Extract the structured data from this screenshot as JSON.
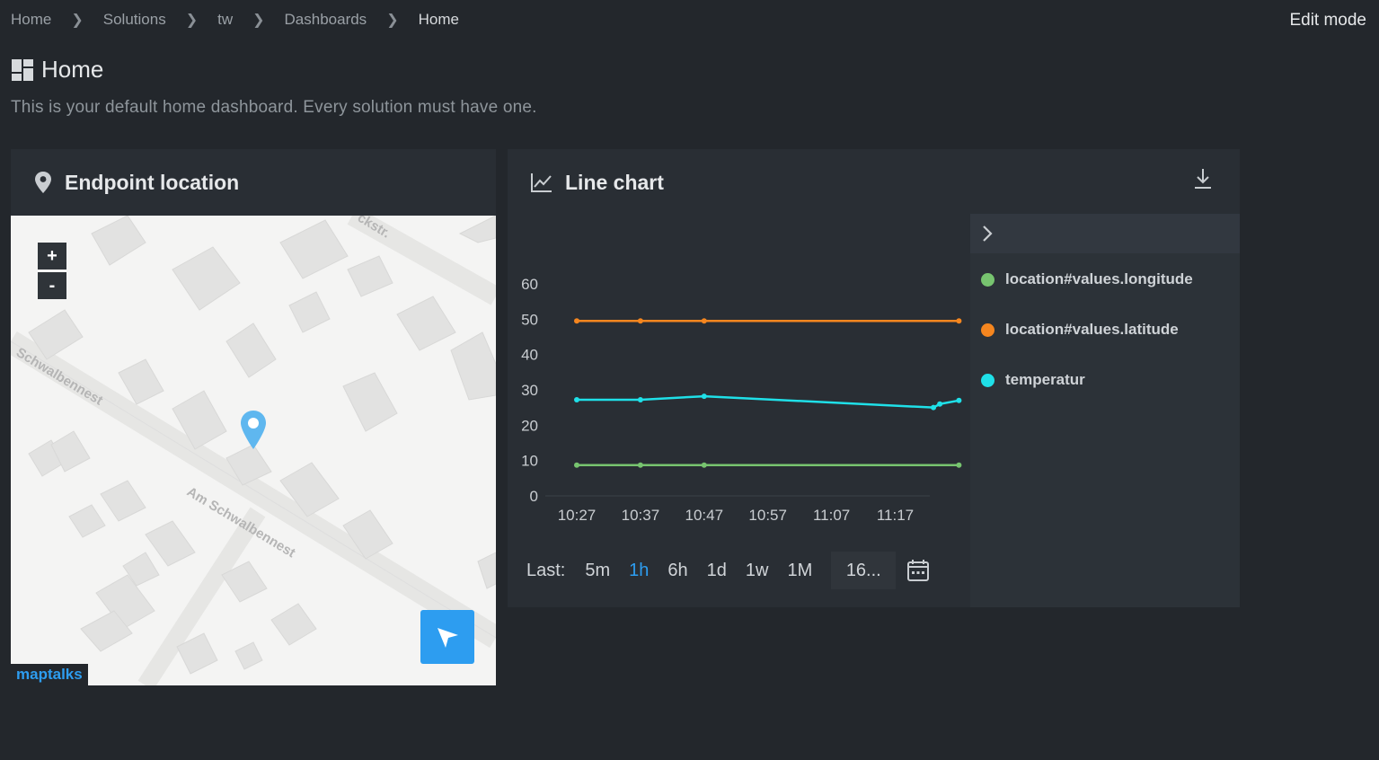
{
  "breadcrumb": [
    "Home",
    "Solutions",
    "tw",
    "Dashboards",
    "Home"
  ],
  "header": {
    "edit_mode": "Edit mode",
    "title": "Home",
    "subtitle": "This is your default home dashboard. Every solution must have one."
  },
  "map_card": {
    "title": "Endpoint location",
    "zoom_in": "+",
    "zoom_out": "-",
    "attribution": "maptalks",
    "streets": [
      "Schwalbennest",
      "Am Schwalbennest",
      "ckstr."
    ]
  },
  "chart_card": {
    "title": "Line chart"
  },
  "range": {
    "label": "Last:",
    "options": [
      "5m",
      "1h",
      "6h",
      "1d",
      "1w",
      "1M"
    ],
    "active": "1h",
    "date_value": "16..."
  },
  "colors": {
    "longitude": "#77c46f",
    "latitude": "#f5861f",
    "temperatur": "#1fe0e8",
    "accent": "#2d9df0"
  },
  "icons": {
    "title": "dashboard-icon",
    "map": "map-pin-icon",
    "chart": "line-chart-icon",
    "download": "download-icon",
    "legend_toggle": "chevron-right-icon",
    "calendar": "calendar-icon",
    "locate": "cursor-arrow-icon",
    "marker": "location-marker-icon"
  },
  "chart_data": {
    "type": "line",
    "x": [
      "10:27",
      "10:37",
      "10:47",
      "10:57",
      "11:07",
      "11:17"
    ],
    "ylim": [
      0,
      60
    ],
    "yticks": [
      0,
      10,
      20,
      30,
      40,
      50,
      60
    ],
    "series": [
      {
        "name": "location#values.longitude",
        "color": "#77c46f",
        "points": [
          [
            "10:27",
            8.7
          ],
          [
            "10:37",
            8.7
          ],
          [
            "10:47",
            8.7
          ],
          [
            "11:27",
            8.7
          ]
        ]
      },
      {
        "name": "location#values.latitude",
        "color": "#f5861f",
        "points": [
          [
            "10:27",
            49.5
          ],
          [
            "10:37",
            49.5
          ],
          [
            "10:47",
            49.5
          ],
          [
            "11:27",
            49.5
          ]
        ]
      },
      {
        "name": "temperatur",
        "color": "#1fe0e8",
        "points": [
          [
            "10:27",
            27.2
          ],
          [
            "10:37",
            27.2
          ],
          [
            "10:47",
            28.2
          ],
          [
            "11:23",
            25.0
          ],
          [
            "11:24",
            26.0
          ],
          [
            "11:27",
            27.0
          ]
        ]
      }
    ],
    "grid": false,
    "legend": "right"
  }
}
